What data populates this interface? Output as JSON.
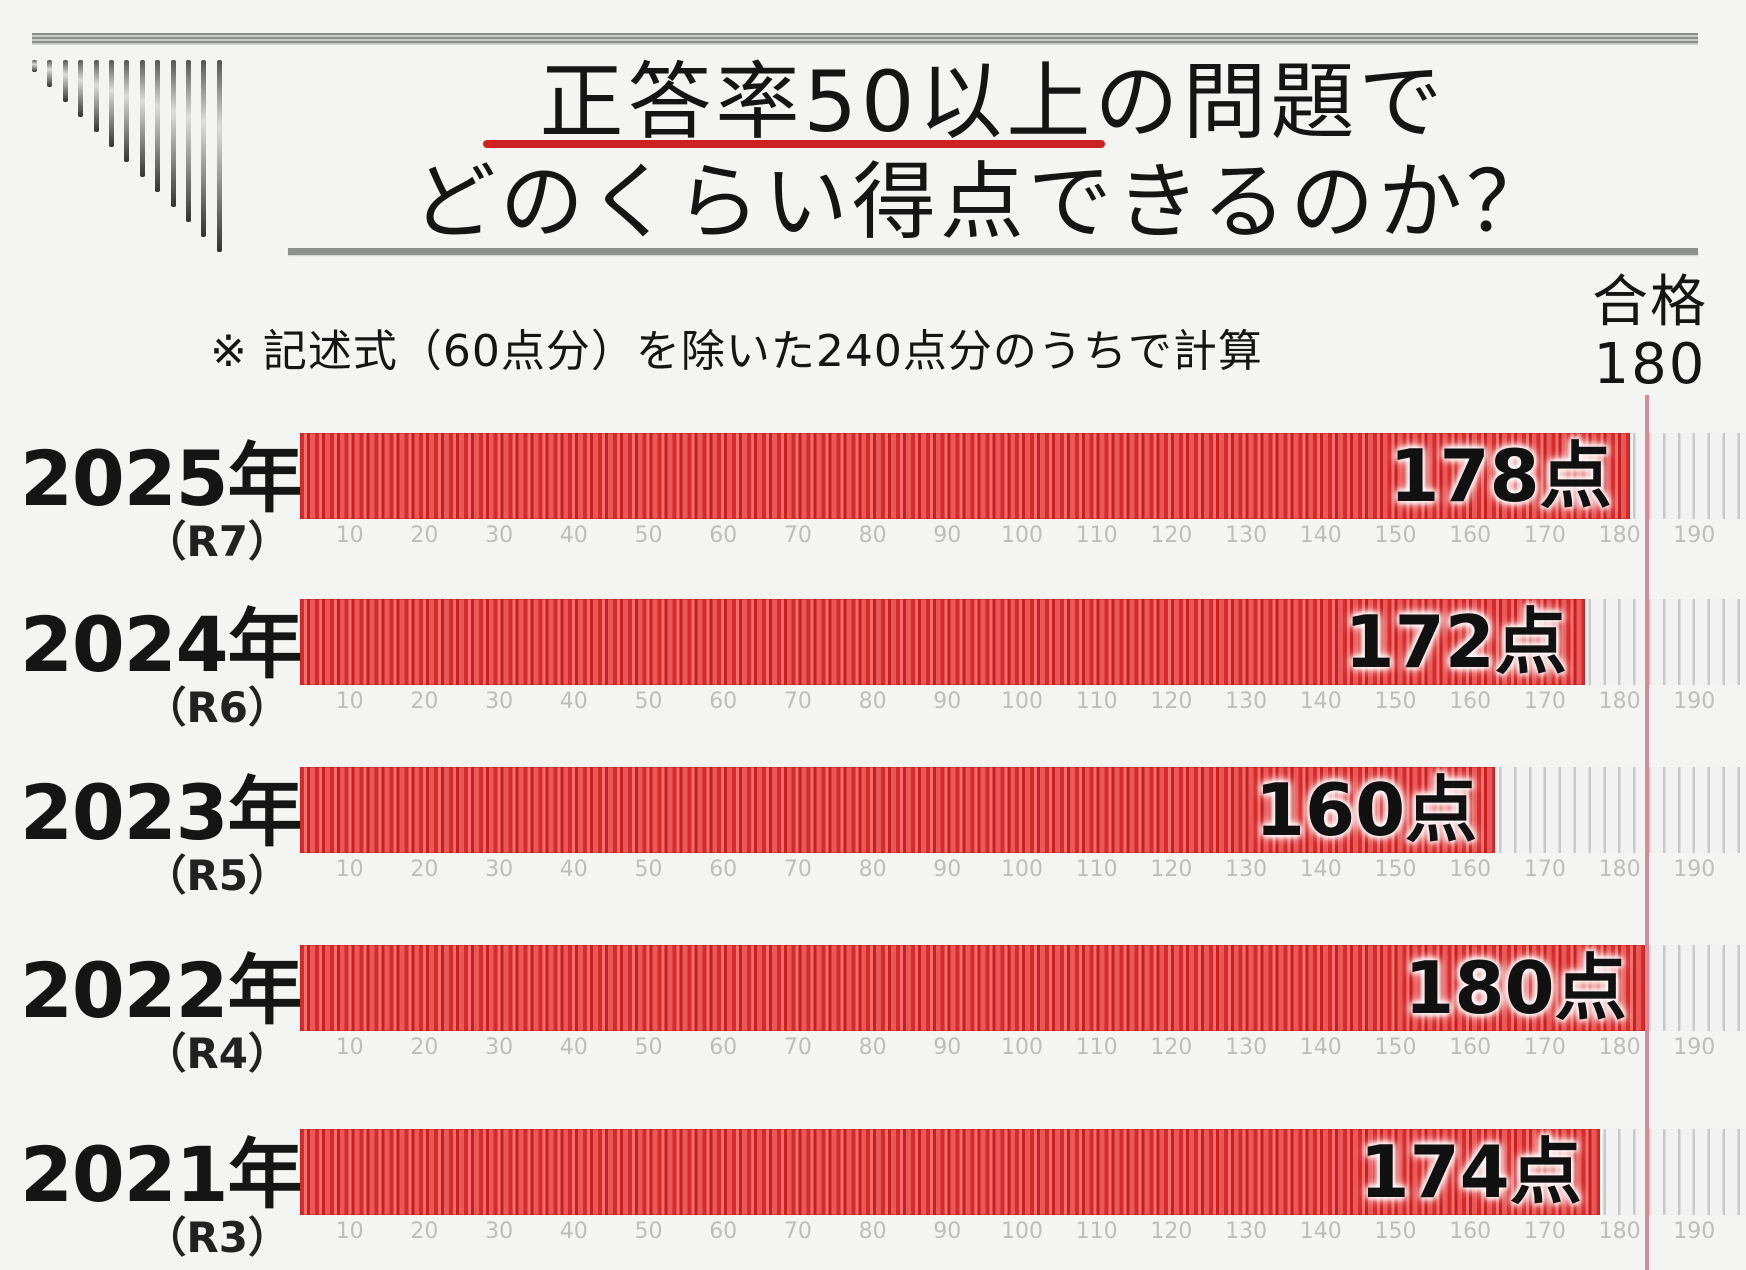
{
  "title": {
    "line1_underlined": "正答率50以上",
    "line1_rest": "の問題で",
    "line2": "どのくらい得点できるのか？",
    "underline_color": "#cc2222"
  },
  "note": "※ 記述式（60点分）を除いた240点分のうちで計算",
  "pass_marker": {
    "label_line1": "合格",
    "label_line2": "180",
    "value": 180,
    "color": "#d98a94"
  },
  "axis": {
    "ticks": [
      "10",
      "20",
      "30",
      "40",
      "50",
      "60",
      "70",
      "80",
      "90",
      "100",
      "110",
      "120",
      "130",
      "140",
      "150",
      "160",
      "170",
      "180",
      "190"
    ]
  },
  "rows": [
    {
      "year": "2025年",
      "era": "（R7）",
      "value": 178,
      "value_label": "178点"
    },
    {
      "year": "2024年",
      "era": "（R6）",
      "value": 172,
      "value_label": "172点"
    },
    {
      "year": "2023年",
      "era": "（R5）",
      "value": 160,
      "value_label": "160点"
    },
    {
      "year": "2022年",
      "era": "（R4）",
      "value": 180,
      "value_label": "180点"
    },
    {
      "year": "2021年",
      "era": "（R3）",
      "value": 174,
      "value_label": "174点"
    }
  ],
  "colors": {
    "bar": "#d92a2a",
    "track": "#c9c9c9",
    "background": "#f4f5f3"
  },
  "chart_data": {
    "type": "bar",
    "orientation": "horizontal",
    "title": "正答率50以上の問題でどのくらい得点できるのか？",
    "subtitle": "※ 記述式（60点分）を除いた240点分のうちで計算",
    "categories": [
      "2025年（R7）",
      "2024年（R6）",
      "2023年（R5）",
      "2022年（R4）",
      "2021年（R3）"
    ],
    "values": [
      178,
      172,
      160,
      180,
      174
    ],
    "data_labels": [
      "178点",
      "172点",
      "160点",
      "180点",
      "174点"
    ],
    "xlabel": "",
    "ylabel": "",
    "xlim": [
      0,
      195
    ],
    "xticks": [
      10,
      20,
      30,
      40,
      50,
      60,
      70,
      80,
      90,
      100,
      110,
      120,
      130,
      140,
      150,
      160,
      170,
      180,
      190
    ],
    "reference_line": {
      "value": 180,
      "label": "合格 180"
    },
    "grid": false,
    "legend": null
  }
}
